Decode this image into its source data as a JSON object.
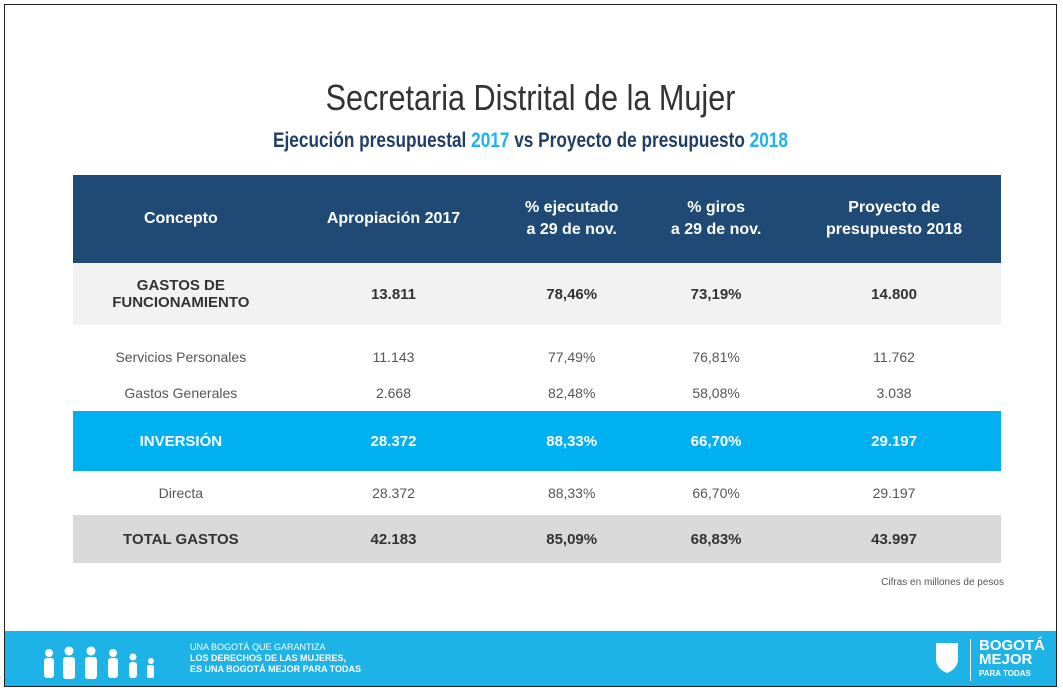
{
  "title": "Secretaria Distrital de la Mujer",
  "subtitle": [
    "Ejecución presupuestal ",
    "2017",
    " vs Proyecto de presupuesto ",
    "2018"
  ],
  "table": {
    "headers": [
      [
        "Concepto"
      ],
      [
        "Apropiación 2017"
      ],
      [
        "% ejecutado",
        "a 29 de nov."
      ],
      [
        "% giros",
        "a 29 de nov."
      ],
      [
        "Proyecto de",
        "presupuesto 2018"
      ]
    ],
    "rows": [
      [
        [
          "GASTOS DE",
          "FUNCIONAMIENTO"
        ],
        "13.811",
        "78,46%",
        "73,19%",
        "14.800"
      ],
      [
        [
          "Servicios Personales"
        ],
        "11.143",
        "77,49%",
        "76,81%",
        "11.762"
      ],
      [
        [
          "Gastos Generales"
        ],
        "2.668",
        "82,48%",
        "58,08%",
        "3.038"
      ],
      [
        [
          "INVERSIÓN"
        ],
        "28.372",
        "88,33%",
        "66,70%",
        "29.197"
      ],
      [
        [
          "Directa"
        ],
        "28.372",
        "88,33%",
        "66,70%",
        "29.197"
      ],
      [
        [
          "TOTAL GASTOS"
        ],
        "42.183",
        "85,09%",
        "68,83%",
        "43.997"
      ]
    ]
  },
  "note": "Cifras en millones de pesos",
  "footer": {
    "slogan": [
      "UNA BOGOTÁ QUE GARANTIZA",
      "LOS DERECHOS DE LAS MUJERES,",
      "ES UNA BOGOTÁ MEJOR PARA TODAS"
    ],
    "logo": [
      "BOGOTÁ",
      "MEJOR",
      "PARA TODAS"
    ]
  }
}
